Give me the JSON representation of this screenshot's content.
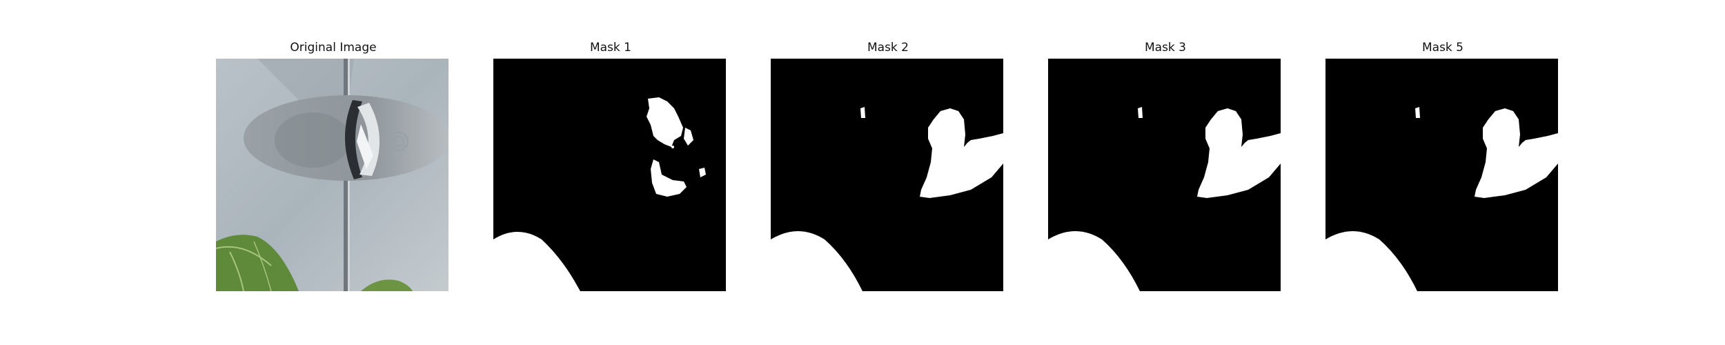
{
  "figure": {
    "panels": [
      {
        "title": "Original Image",
        "kind": "photo"
      },
      {
        "title": "Mask 1",
        "kind": "mask"
      },
      {
        "title": "Mask 2",
        "kind": "mask"
      },
      {
        "title": "Mask 3",
        "kind": "mask"
      },
      {
        "title": "Mask 5",
        "kind": "mask"
      }
    ]
  },
  "colors": {
    "mask_background": "#000000",
    "mask_foreground": "#ffffff",
    "photo_wall": "#aeb8bf",
    "photo_leaf": "#5e8a3a"
  }
}
